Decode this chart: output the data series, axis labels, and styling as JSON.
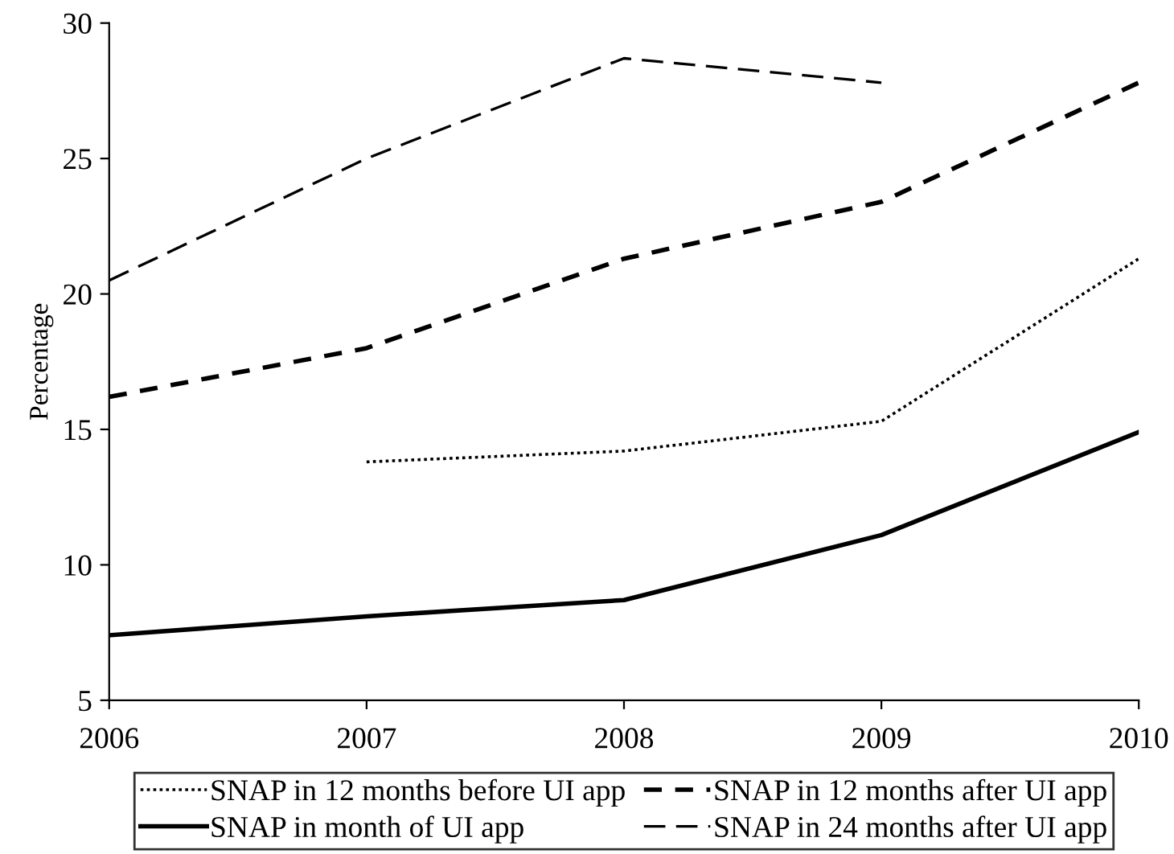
{
  "chart_data": {
    "type": "line",
    "ylabel": "Percentage",
    "x": [
      2006,
      2007,
      2008,
      2009,
      2010
    ],
    "xlim": [
      2006,
      2010
    ],
    "xticks": [
      2006,
      2007,
      2008,
      2009,
      2010
    ],
    "ylim": [
      5,
      30
    ],
    "yticks": [
      5,
      10,
      15,
      20,
      25,
      30
    ],
    "grid": false,
    "legend": "bottom",
    "marker": "none",
    "series": [
      {
        "name": "SNAP in 12 months before UI app",
        "color": "#000000",
        "line_style": "dotted",
        "values": [
          null,
          13.8,
          14.2,
          15.3,
          21.3
        ]
      },
      {
        "name": "SNAP in month of UI app",
        "color": "#000000",
        "line_style": "solid",
        "values": [
          7.4,
          8.1,
          8.7,
          11.1,
          14.9
        ]
      },
      {
        "name": "SNAP in 12 months after UI app",
        "color": "#000000",
        "line_style": "dashed",
        "values": [
          16.2,
          18.0,
          21.3,
          23.4,
          27.8
        ]
      },
      {
        "name": "SNAP in 24 months after UI app",
        "color": "#000000",
        "line_style": "longdash",
        "values": [
          20.5,
          25.0,
          28.7,
          27.8,
          null
        ]
      }
    ]
  }
}
